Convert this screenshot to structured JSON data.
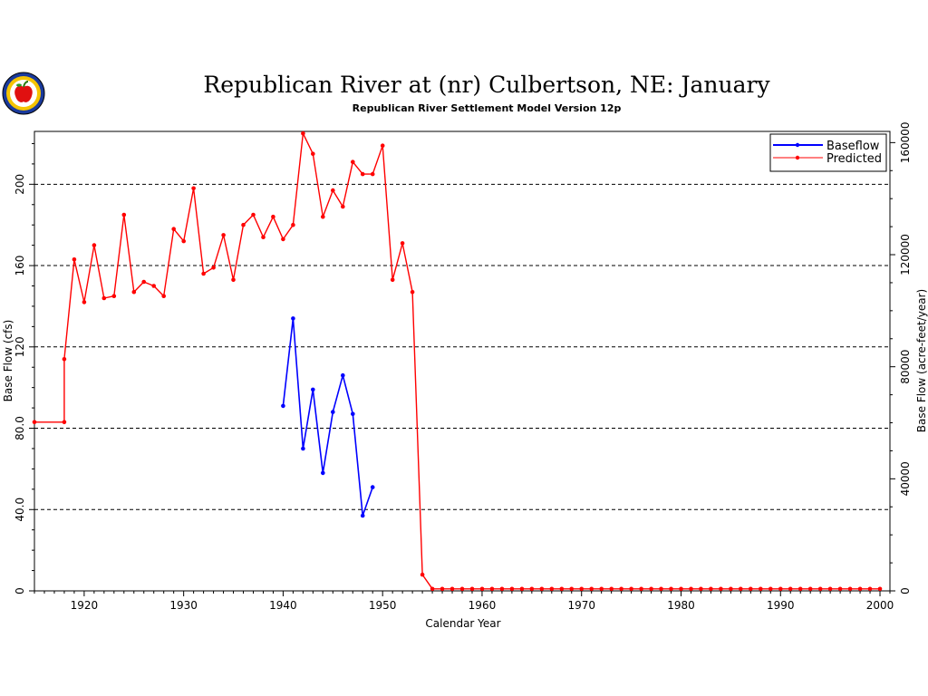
{
  "chart_data": {
    "type": "line",
    "title": "Republican River at (nr) Culbertson, NE: January",
    "subtitle": "Republican River Settlement Model Version 12p",
    "xlabel": "Calendar Year",
    "ylabel": "Base Flow (cfs)",
    "y2label": "Base Flow (acre-feet/year)",
    "xlim": [
      1915,
      2001
    ],
    "ylim": [
      0,
      226
    ],
    "y2lim": [
      0,
      164000
    ],
    "x_ticks": [
      1920,
      1930,
      1940,
      1950,
      1960,
      1970,
      1980,
      1990,
      2000
    ],
    "y_ticks": [
      "0",
      "40.0",
      "80.0",
      "120",
      "160",
      "200"
    ],
    "y_tick_values": [
      0,
      40,
      80,
      120,
      160,
      200
    ],
    "y2_ticks": [
      "0",
      "40000",
      "80000",
      "120000",
      "160000"
    ],
    "y2_tick_values": [
      0,
      40000,
      80000,
      120000,
      160000
    ],
    "grid": "horizontal-dashed",
    "legend": "top-right",
    "series": [
      {
        "name": "Baseflow",
        "color": "#0000ff",
        "points": [
          [
            1940,
            91
          ],
          [
            1941,
            134
          ],
          [
            1942,
            70
          ],
          [
            1943,
            99
          ],
          [
            1944,
            58
          ],
          [
            1945,
            88
          ],
          [
            1946,
            106
          ],
          [
            1947,
            87
          ],
          [
            1948,
            37
          ],
          [
            1949,
            51
          ]
        ]
      },
      {
        "name": "Predicted",
        "color": "#ff0000",
        "points": [
          [
            1915,
            83
          ],
          [
            1918,
            83
          ],
          [
            1918,
            114
          ],
          [
            1919,
            163
          ],
          [
            1920,
            142
          ],
          [
            1921,
            170
          ],
          [
            1922,
            144
          ],
          [
            1923,
            145
          ],
          [
            1924,
            185
          ],
          [
            1925,
            147
          ],
          [
            1926,
            152
          ],
          [
            1927,
            150
          ],
          [
            1928,
            145
          ],
          [
            1929,
            178
          ],
          [
            1930,
            172
          ],
          [
            1931,
            198
          ],
          [
            1932,
            156
          ],
          [
            1933,
            159
          ],
          [
            1934,
            175
          ],
          [
            1935,
            153
          ],
          [
            1936,
            180
          ],
          [
            1937,
            185
          ],
          [
            1938,
            174
          ],
          [
            1939,
            184
          ],
          [
            1940,
            173
          ],
          [
            1941,
            180
          ],
          [
            1942,
            225
          ],
          [
            1943,
            215
          ],
          [
            1944,
            184
          ],
          [
            1945,
            197
          ],
          [
            1946,
            189
          ],
          [
            1947,
            211
          ],
          [
            1948,
            205
          ],
          [
            1949,
            205
          ],
          [
            1950,
            219
          ],
          [
            1951,
            153
          ],
          [
            1952,
            171
          ],
          [
            1953,
            147
          ],
          [
            1954,
            8
          ],
          [
            1955,
            1
          ],
          [
            1956,
            1
          ],
          [
            1957,
            1
          ],
          [
            1958,
            1
          ],
          [
            1959,
            1
          ],
          [
            1960,
            1
          ],
          [
            1961,
            1
          ],
          [
            1962,
            1
          ],
          [
            1963,
            1
          ],
          [
            1964,
            1
          ],
          [
            1965,
            1
          ],
          [
            1966,
            1
          ],
          [
            1967,
            1
          ],
          [
            1968,
            1
          ],
          [
            1969,
            1
          ],
          [
            1970,
            1
          ],
          [
            1971,
            1
          ],
          [
            1972,
            1
          ],
          [
            1973,
            1
          ],
          [
            1974,
            1
          ],
          [
            1975,
            1
          ],
          [
            1976,
            1
          ],
          [
            1977,
            1
          ],
          [
            1978,
            1
          ],
          [
            1979,
            1
          ],
          [
            1980,
            1
          ],
          [
            1981,
            1
          ],
          [
            1982,
            1
          ],
          [
            1983,
            1
          ],
          [
            1984,
            1
          ],
          [
            1985,
            1
          ],
          [
            1986,
            1
          ],
          [
            1987,
            1
          ],
          [
            1988,
            1
          ],
          [
            1989,
            1
          ],
          [
            1990,
            1
          ],
          [
            1991,
            1
          ],
          [
            1992,
            1
          ],
          [
            1993,
            1
          ],
          [
            1994,
            1
          ],
          [
            1995,
            1
          ],
          [
            1996,
            1
          ],
          [
            1997,
            1
          ],
          [
            1998,
            1
          ],
          [
            1999,
            1
          ],
          [
            2000,
            1
          ]
        ]
      }
    ]
  }
}
